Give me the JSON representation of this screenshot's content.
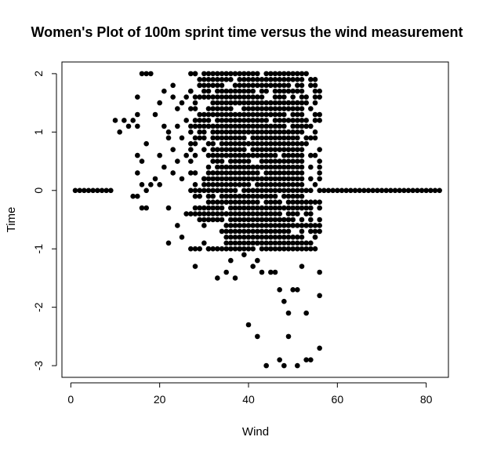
{
  "chart_data": {
    "type": "scatter",
    "title": "Women's Plot of 100m sprint time versus the wind measurement",
    "xlabel": "Wind",
    "ylabel": "Time",
    "xlim": [
      -2,
      85
    ],
    "ylim": [
      -3.2,
      2.2
    ],
    "x_ticks": [
      "0",
      "20",
      "40",
      "60",
      "80"
    ],
    "y_ticks": [
      "-3",
      "-2",
      "-1",
      "0",
      "1",
      "2"
    ],
    "marker_color": "#000000",
    "grid": false,
    "legend": "none",
    "points": [
      {
        "x": 1,
        "y": 0
      },
      {
        "x": 2,
        "y": 0
      },
      {
        "x": 3,
        "y": 0
      },
      {
        "x": 4,
        "y": 0
      },
      {
        "x": 5,
        "y": 0
      },
      {
        "x": 6,
        "y": 0
      },
      {
        "x": 7,
        "y": 0
      },
      {
        "x": 8,
        "y": 0
      },
      {
        "x": 9,
        "y": 0
      },
      {
        "x": 10,
        "y": 1.2
      },
      {
        "x": 11,
        "y": 1.0
      },
      {
        "x": 12,
        "y": 1.2
      },
      {
        "x": 13,
        "y": 1.1
      },
      {
        "x": 14,
        "y": 1.2
      },
      {
        "x": 15,
        "y": 1.3
      },
      {
        "x": 15,
        "y": 1.1
      },
      {
        "x": 15,
        "y": 1.6
      },
      {
        "x": 15,
        "y": 0.6
      },
      {
        "x": 15,
        "y": 0.3
      },
      {
        "x": 15,
        "y": -0.1
      },
      {
        "x": 14,
        "y": -0.1
      },
      {
        "x": 16,
        "y": 2.0
      },
      {
        "x": 17,
        "y": 2.0
      },
      {
        "x": 18,
        "y": 2.0
      },
      {
        "x": 16,
        "y": 0.5
      },
      {
        "x": 16,
        "y": 0.1
      },
      {
        "x": 16,
        "y": -0.3
      },
      {
        "x": 17,
        "y": -0.3
      },
      {
        "x": 17,
        "y": 0.8
      },
      {
        "x": 17,
        "y": 0
      },
      {
        "x": 18,
        "y": 0.1
      },
      {
        "x": 19,
        "y": 0.2
      },
      {
        "x": 19,
        "y": 1.3
      },
      {
        "x": 20,
        "y": 1.5
      },
      {
        "x": 20,
        "y": 0.1
      },
      {
        "x": 20,
        "y": 0.6
      },
      {
        "x": 21,
        "y": 1.7
      },
      {
        "x": 21,
        "y": 0.4
      },
      {
        "x": 21,
        "y": 1.1
      },
      {
        "x": 22,
        "y": 1.0
      },
      {
        "x": 22,
        "y": 0.9
      },
      {
        "x": 22,
        "y": -0.9
      },
      {
        "x": 22,
        "y": -0.3
      },
      {
        "x": 23,
        "y": 1.8
      },
      {
        "x": 23,
        "y": 1.6
      },
      {
        "x": 23,
        "y": 0.7
      },
      {
        "x": 23,
        "y": 0.3
      },
      {
        "x": 24,
        "y": 1.4
      },
      {
        "x": 24,
        "y": 1.1
      },
      {
        "x": 24,
        "y": -0.6
      },
      {
        "x": 24,
        "y": 0.5
      },
      {
        "x": 25,
        "y": 1.5
      },
      {
        "x": 25,
        "y": 0.2
      },
      {
        "x": 25,
        "y": -0.8
      },
      {
        "x": 25,
        "y": 0.9
      },
      {
        "x": 26,
        "y": 1.6
      },
      {
        "x": 26,
        "y": 1.2
      },
      {
        "x": 26,
        "y": -0.4
      },
      {
        "x": 26,
        "y": 0.6
      },
      {
        "x": 27,
        "y": 2.0
      },
      {
        "x": 27,
        "y": 1.7
      },
      {
        "x": 27,
        "y": -1.0
      },
      {
        "x": 27,
        "y": 0.8
      },
      {
        "x": 28,
        "y": 2.0
      },
      {
        "x": 28,
        "y": -1.3
      },
      {
        "x": 28,
        "y": -1.0
      },
      {
        "x": 28,
        "y": 0.9
      },
      {
        "x": 29,
        "y": -1.0
      },
      {
        "x": 29,
        "y": 1.8
      },
      {
        "x": 30,
        "y": -0.6
      },
      {
        "x": 30,
        "y": 0.2
      },
      {
        "x": 31,
        "y": -1.0
      },
      {
        "x": 32,
        "y": -1.0
      },
      {
        "x": 33,
        "y": -1.0
      },
      {
        "x": 33,
        "y": -1.5
      },
      {
        "x": 34,
        "y": -0.7
      },
      {
        "x": 35,
        "y": -1.4
      },
      {
        "x": 36,
        "y": -1.2
      },
      {
        "x": 37,
        "y": -1.5
      },
      {
        "x": 38,
        "y": -1.0
      },
      {
        "x": 39,
        "y": -1.1
      },
      {
        "x": 40,
        "y": -2.3
      },
      {
        "x": 41,
        "y": -1.3
      },
      {
        "x": 42,
        "y": -1.2
      },
      {
        "x": 42,
        "y": -2.5
      },
      {
        "x": 43,
        "y": -1.4
      },
      {
        "x": 44,
        "y": -3.0
      },
      {
        "x": 45,
        "y": -1.4
      },
      {
        "x": 46,
        "y": -1.4
      },
      {
        "x": 47,
        "y": -2.9
      },
      {
        "x": 47,
        "y": -1.7
      },
      {
        "x": 48,
        "y": -3.0
      },
      {
        "x": 48,
        "y": -1.9
      },
      {
        "x": 49,
        "y": -2.1
      },
      {
        "x": 49,
        "y": -2.5
      },
      {
        "x": 50,
        "y": -1.7
      },
      {
        "x": 51,
        "y": -3.0
      },
      {
        "x": 51,
        "y": -1.7
      },
      {
        "x": 52,
        "y": -1.3
      },
      {
        "x": 53,
        "y": -2.1
      },
      {
        "x": 53,
        "y": -2.9
      },
      {
        "x": 54,
        "y": -2.9
      },
      {
        "x": 54,
        "y": -1.0
      },
      {
        "x": 55,
        "y": -0.8
      },
      {
        "x": 56,
        "y": -1.8
      },
      {
        "x": 56,
        "y": -2.7
      },
      {
        "x": 56,
        "y": -1.4
      },
      {
        "x": 57,
        "y": 0
      },
      {
        "x": 58,
        "y": 0
      },
      {
        "x": 59,
        "y": 0
      },
      {
        "x": 60,
        "y": 0
      },
      {
        "x": 61,
        "y": 0
      },
      {
        "x": 62,
        "y": 0
      },
      {
        "x": 63,
        "y": 0
      },
      {
        "x": 64,
        "y": 0
      },
      {
        "x": 65,
        "y": 0
      },
      {
        "x": 66,
        "y": 0
      },
      {
        "x": 67,
        "y": 0
      },
      {
        "x": 68,
        "y": 0
      },
      {
        "x": 69,
        "y": 0
      },
      {
        "x": 70,
        "y": 0
      },
      {
        "x": 71,
        "y": 0
      },
      {
        "x": 72,
        "y": 0
      },
      {
        "x": 73,
        "y": 0
      },
      {
        "x": 74,
        "y": 0
      },
      {
        "x": 75,
        "y": 0
      },
      {
        "x": 76,
        "y": 0
      },
      {
        "x": 77,
        "y": 0
      },
      {
        "x": 78,
        "y": 0
      },
      {
        "x": 79,
        "y": 0
      },
      {
        "x": 80,
        "y": 0
      },
      {
        "x": 81,
        "y": 0
      },
      {
        "x": 82,
        "y": 0
      },
      {
        "x": 83,
        "y": 0
      }
    ],
    "dense_grid": {
      "x_from": 27,
      "x_to": 56,
      "x_step": 1,
      "y_from": -1.0,
      "y_to": 2.0,
      "y_step": 0.1,
      "fill_min_x": 32,
      "fill_max_x": 52
    }
  }
}
